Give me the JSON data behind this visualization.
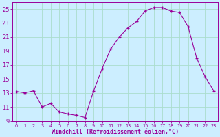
{
  "hours": [
    0,
    1,
    2,
    3,
    4,
    5,
    6,
    7,
    8,
    9,
    10,
    11,
    12,
    13,
    14,
    15,
    16,
    17,
    18,
    19,
    20,
    21,
    22,
    23
  ],
  "values": [
    13.2,
    13.0,
    13.3,
    11.0,
    11.5,
    10.3,
    10.0,
    9.8,
    9.5,
    13.3,
    16.5,
    19.3,
    21.0,
    22.3,
    23.2,
    24.7,
    25.2,
    25.2,
    24.7,
    24.5,
    22.5,
    18.0,
    15.3,
    13.3
  ],
  "line_color": "#990099",
  "marker": "+",
  "marker_size": 3,
  "bg_color": "#cceeff",
  "grid_color": "#aaddcc",
  "xlabel": "Windchill (Refroidissement éolien,°C)",
  "xlabel_color": "#990099",
  "tick_color": "#990099",
  "ylim": [
    9,
    26
  ],
  "yticks": [
    9,
    11,
    13,
    15,
    17,
    19,
    21,
    23,
    25
  ],
  "xlim": [
    -0.5,
    23.5
  ],
  "ytick_fontsize": 6.0,
  "xtick_fontsize": 4.8,
  "xlabel_fontsize": 6.0
}
